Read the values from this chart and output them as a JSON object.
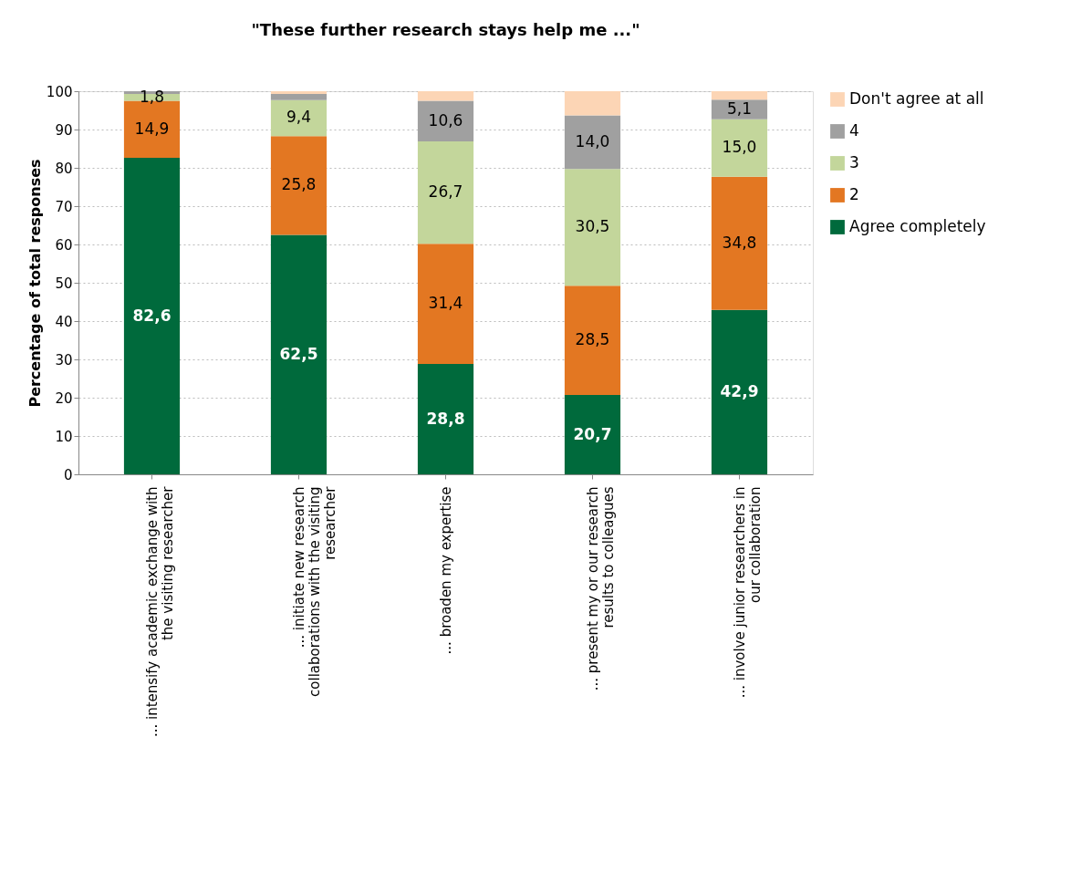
{
  "chart_data": {
    "type": "bar",
    "stacked": true,
    "title": "\"These further research stays help me ...\"",
    "ylabel": "Percentage of total responses",
    "categories": [
      "... intensify academic exchange with the visiting researcher",
      "... initiate new research collaborations with the visiting researcher",
      "... broaden my expertise",
      "... present my or our research results to colleagues",
      "... involve junior researchers in our collaboration"
    ],
    "series": [
      {
        "name": "Agree completely",
        "color": "#006a3c",
        "values": [
          82.6,
          62.5,
          28.8,
          20.7,
          42.9
        ],
        "value_labels": [
          "82,6",
          "62,5",
          "28,8",
          "20,7",
          "42,9"
        ]
      },
      {
        "name": "2",
        "color": "#e37722",
        "values": [
          14.9,
          25.8,
          31.4,
          28.5,
          34.8
        ],
        "value_labels": [
          "14,9",
          "25,8",
          "31,4",
          "28,5",
          "34,8"
        ]
      },
      {
        "name": "3",
        "color": "#c3d69b",
        "values": [
          1.8,
          9.4,
          26.7,
          30.5,
          15.0
        ],
        "value_labels": [
          "1,8",
          "9,4",
          "26,7",
          "30,5",
          "15,0"
        ]
      },
      {
        "name": "4",
        "color": "#a0a0a0",
        "values": [
          0.7,
          1.6,
          10.6,
          14.0,
          5.1
        ],
        "value_labels": [
          null,
          null,
          "10,6",
          "14,0",
          "5,1"
        ]
      },
      {
        "name": "Don't agree at all",
        "color": "#fcd5b5",
        "values": [
          0.0,
          0.7,
          2.5,
          6.3,
          2.2
        ],
        "value_labels": [
          null,
          null,
          null,
          null,
          null
        ]
      }
    ],
    "ylim": [
      0,
      100
    ],
    "yticks": [
      0,
      10,
      20,
      30,
      40,
      50,
      60,
      70,
      80,
      90,
      100
    ],
    "grid": "y",
    "legend": "right"
  }
}
